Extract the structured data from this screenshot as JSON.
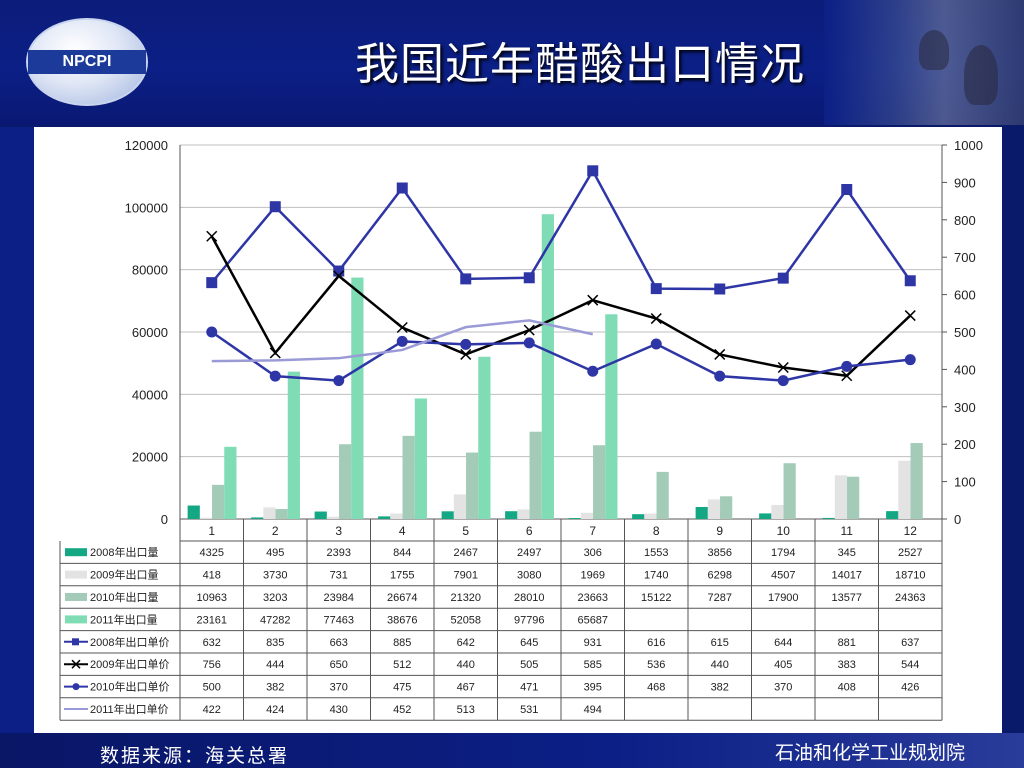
{
  "slide": {
    "title": "我国近年醋酸出口情况",
    "logo_text": "NPCPI",
    "source": "数据来源：海关总署",
    "organization": "石油和化学工业规划院"
  },
  "colors": {
    "header_bg": "#0b1f86",
    "title_text": "#ffffff"
  },
  "chart_data": {
    "type": "bar",
    "categories": [
      "1",
      "2",
      "3",
      "4",
      "5",
      "6",
      "7",
      "8",
      "9",
      "10",
      "11",
      "12"
    ],
    "left_axis": {
      "ylim": [
        0,
        120000
      ],
      "ticks": [
        "0",
        "20000",
        "40000",
        "60000",
        "80000",
        "100000",
        "120000"
      ]
    },
    "right_axis": {
      "ylim": [
        0,
        1000
      ],
      "ticks": [
        "0",
        "100",
        "200",
        "300",
        "400",
        "500",
        "600",
        "700",
        "800",
        "900",
        "1000"
      ]
    },
    "grid": "horizontal",
    "legend": "table-left",
    "bar_series": [
      {
        "name": "2008年出口量",
        "color": "#13a883",
        "values": [
          4325,
          495,
          2393,
          844,
          2467,
          2497,
          306,
          1553,
          3856,
          1794,
          345,
          2527
        ]
      },
      {
        "name": "2009年出口量",
        "color": "#e3e3e3",
        "values": [
          418,
          3730,
          731,
          1755,
          7901,
          3080,
          1969,
          1740,
          6298,
          4507,
          14017,
          18710
        ]
      },
      {
        "name": "2010年出口量",
        "color": "#a3cbb7",
        "values": [
          10963,
          3203,
          23984,
          26674,
          21320,
          28010,
          23663,
          15122,
          7287,
          17900,
          13577,
          24363
        ]
      },
      {
        "name": "2011年出口量",
        "color": "#7fdcb5",
        "values": [
          23161,
          47282,
          77463,
          38676,
          52058,
          97796,
          65687,
          null,
          null,
          null,
          null,
          null
        ]
      }
    ],
    "line_series": [
      {
        "name": "2008年出口单价",
        "color": "#2e36a6",
        "marker": "square",
        "values": [
          632,
          835,
          663,
          885,
          642,
          645,
          931,
          616,
          615,
          644,
          881,
          637
        ]
      },
      {
        "name": "2009年出口单价",
        "color": "#000000",
        "marker": "x",
        "values": [
          756,
          444,
          650,
          512,
          440,
          505,
          585,
          536,
          440,
          405,
          383,
          544
        ]
      },
      {
        "name": "2010年出口单价",
        "color": "#2e36a6",
        "marker": "circle",
        "values": [
          500,
          382,
          370,
          475,
          467,
          471,
          395,
          468,
          382,
          370,
          408,
          426
        ]
      },
      {
        "name": "2011年出口单价",
        "color": "#9a9ad6",
        "marker": "none",
        "values": [
          422,
          424,
          430,
          452,
          513,
          531,
          494,
          null,
          null,
          null,
          null,
          null
        ]
      }
    ]
  }
}
